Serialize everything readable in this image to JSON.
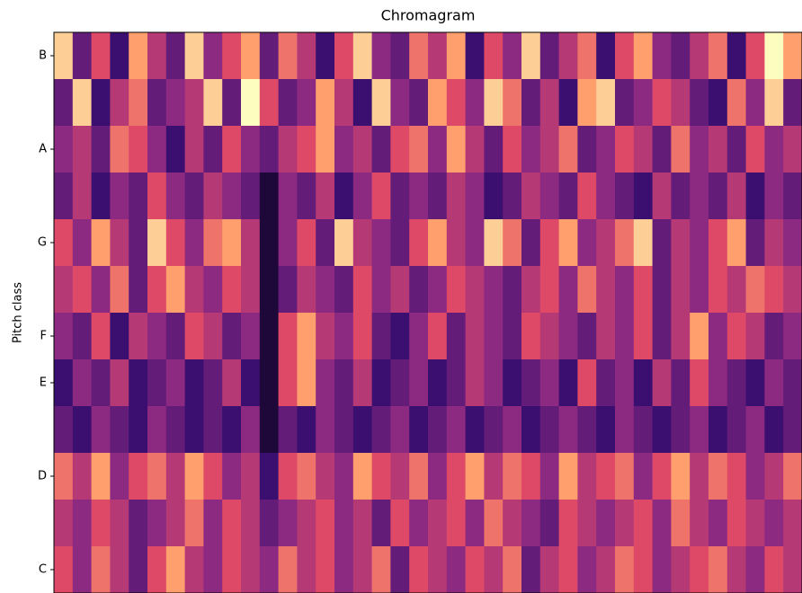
{
  "chart_data": {
    "type": "heatmap",
    "title": "Chromagram",
    "y_label": "Pitch class",
    "colormap": "magma",
    "ylim": [
      -0.5,
      11.5
    ],
    "yticks": [
      {
        "value": 0,
        "label": "C"
      },
      {
        "value": 2,
        "label": "D"
      },
      {
        "value": 4,
        "label": "E"
      },
      {
        "value": 5,
        "label": "F"
      },
      {
        "value": 7,
        "label": "G"
      },
      {
        "value": 9,
        "label": "A"
      },
      {
        "value": 11,
        "label": "B"
      }
    ],
    "z": [
      [
        0.6,
        0.4,
        0.7,
        0.5,
        0.3,
        0.6,
        0.8,
        0.5,
        0.4,
        0.6,
        0.5,
        0.4,
        0.7,
        0.5,
        0.6,
        0.4,
        0.5,
        0.7,
        0.3,
        0.6,
        0.5,
        0.4,
        0.6,
        0.5,
        0.7,
        0.3,
        0.5,
        0.6,
        0.4,
        0.5,
        0.7,
        0.6,
        0.4,
        0.5,
        0.6,
        0.7,
        0.5,
        0.4,
        0.6,
        0.5
      ],
      [
        0.5,
        0.4,
        0.6,
        0.5,
        0.3,
        0.4,
        0.5,
        0.7,
        0.4,
        0.6,
        0.5,
        0.3,
        0.4,
        0.5,
        0.6,
        0.4,
        0.5,
        0.3,
        0.6,
        0.4,
        0.5,
        0.6,
        0.4,
        0.7,
        0.5,
        0.4,
        0.3,
        0.6,
        0.5,
        0.4,
        0.5,
        0.6,
        0.4,
        0.7,
        0.5,
        0.4,
        0.6,
        0.5,
        0.4,
        0.5
      ],
      [
        0.7,
        0.5,
        0.8,
        0.4,
        0.6,
        0.7,
        0.5,
        0.8,
        0.6,
        0.4,
        0.5,
        0.2,
        0.6,
        0.7,
        0.5,
        0.4,
        0.8,
        0.6,
        0.5,
        0.7,
        0.4,
        0.6,
        0.8,
        0.5,
        0.7,
        0.6,
        0.4,
        0.8,
        0.5,
        0.6,
        0.7,
        0.4,
        0.6,
        0.8,
        0.5,
        0.7,
        0.6,
        0.4,
        0.5,
        0.7
      ],
      [
        0.3,
        0.2,
        0.4,
        0.3,
        0.2,
        0.4,
        0.3,
        0.2,
        0.3,
        0.2,
        0.4,
        0.1,
        0.3,
        0.2,
        0.4,
        0.3,
        0.2,
        0.3,
        0.4,
        0.2,
        0.3,
        0.4,
        0.2,
        0.3,
        0.4,
        0.2,
        0.3,
        0.4,
        0.3,
        0.2,
        0.4,
        0.3,
        0.2,
        0.3,
        0.4,
        0.2,
        0.3,
        0.4,
        0.2,
        0.3
      ],
      [
        0.2,
        0.4,
        0.3,
        0.5,
        0.2,
        0.3,
        0.4,
        0.2,
        0.3,
        0.5,
        0.2,
        0.1,
        0.6,
        0.8,
        0.4,
        0.3,
        0.5,
        0.2,
        0.3,
        0.4,
        0.2,
        0.3,
        0.5,
        0.4,
        0.2,
        0.3,
        0.4,
        0.2,
        0.6,
        0.3,
        0.4,
        0.2,
        0.5,
        0.3,
        0.6,
        0.4,
        0.3,
        0.2,
        0.4,
        0.3
      ],
      [
        0.4,
        0.3,
        0.6,
        0.2,
        0.5,
        0.4,
        0.3,
        0.6,
        0.5,
        0.3,
        0.4,
        0.1,
        0.6,
        0.8,
        0.5,
        0.4,
        0.6,
        0.3,
        0.2,
        0.4,
        0.6,
        0.3,
        0.5,
        0.4,
        0.3,
        0.6,
        0.5,
        0.4,
        0.3,
        0.5,
        0.4,
        0.6,
        0.3,
        0.5,
        0.8,
        0.4,
        0.6,
        0.5,
        0.3,
        0.4
      ],
      [
        0.5,
        0.6,
        0.4,
        0.7,
        0.3,
        0.6,
        0.8,
        0.5,
        0.4,
        0.6,
        0.5,
        0.1,
        0.3,
        0.5,
        0.4,
        0.3,
        0.6,
        0.4,
        0.5,
        0.3,
        0.4,
        0.6,
        0.5,
        0.4,
        0.3,
        0.5,
        0.6,
        0.4,
        0.7,
        0.5,
        0.4,
        0.6,
        0.3,
        0.5,
        0.4,
        0.6,
        0.5,
        0.7,
        0.6,
        0.5
      ],
      [
        0.6,
        0.4,
        0.8,
        0.5,
        0.3,
        0.9,
        0.6,
        0.4,
        0.7,
        0.8,
        0.5,
        0.1,
        0.4,
        0.6,
        0.3,
        0.9,
        0.5,
        0.4,
        0.3,
        0.6,
        0.8,
        0.5,
        0.4,
        0.9,
        0.7,
        0.3,
        0.6,
        0.8,
        0.4,
        0.5,
        0.7,
        0.9,
        0.3,
        0.5,
        0.4,
        0.6,
        0.8,
        0.3,
        0.5,
        0.4
      ],
      [
        0.3,
        0.5,
        0.2,
        0.4,
        0.3,
        0.6,
        0.4,
        0.3,
        0.5,
        0.4,
        0.3,
        0.1,
        0.4,
        0.3,
        0.5,
        0.2,
        0.4,
        0.6,
        0.3,
        0.4,
        0.3,
        0.5,
        0.4,
        0.2,
        0.3,
        0.5,
        0.4,
        0.3,
        0.6,
        0.4,
        0.3,
        0.2,
        0.5,
        0.3,
        0.4,
        0.3,
        0.5,
        0.2,
        0.4,
        0.3
      ],
      [
        0.4,
        0.5,
        0.3,
        0.7,
        0.6,
        0.4,
        0.2,
        0.5,
        0.3,
        0.6,
        0.4,
        0.3,
        0.5,
        0.6,
        0.8,
        0.4,
        0.5,
        0.3,
        0.6,
        0.7,
        0.4,
        0.8,
        0.5,
        0.3,
        0.6,
        0.4,
        0.5,
        0.7,
        0.3,
        0.4,
        0.6,
        0.5,
        0.3,
        0.7,
        0.4,
        0.5,
        0.3,
        0.6,
        0.4,
        0.5
      ],
      [
        0.3,
        0.9,
        0.2,
        0.5,
        0.7,
        0.3,
        0.4,
        0.5,
        0.9,
        0.3,
        1,
        0.6,
        0.3,
        0.4,
        0.8,
        0.5,
        0.2,
        0.9,
        0.4,
        0.3,
        0.8,
        0.6,
        0.4,
        0.9,
        0.7,
        0.3,
        0.5,
        0.2,
        0.8,
        0.9,
        0.3,
        0.4,
        0.6,
        0.5,
        0.3,
        0.2,
        0.7,
        0.4,
        0.9,
        0.3
      ],
      [
        0.9,
        0.3,
        0.6,
        0.2,
        0.8,
        0.5,
        0.3,
        0.9,
        0.4,
        0.6,
        0.8,
        0.3,
        0.7,
        0.5,
        0.2,
        0.6,
        0.9,
        0.4,
        0.3,
        0.7,
        0.5,
        0.8,
        0.2,
        0.6,
        0.4,
        0.9,
        0.3,
        0.5,
        0.7,
        0.2,
        0.6,
        0.8,
        0.4,
        0.3,
        0.5,
        0.7,
        0.2,
        0.6,
        1,
        0.8
      ]
    ]
  }
}
